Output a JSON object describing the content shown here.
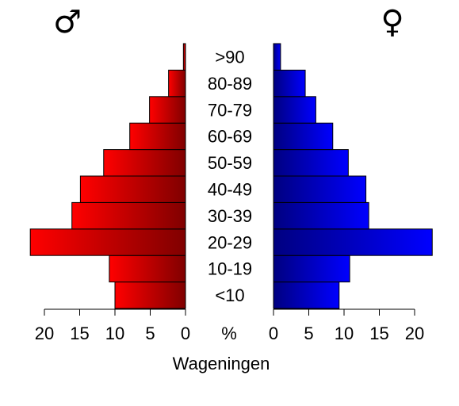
{
  "chart_data": {
    "type": "pyramid",
    "title": "Wageningen",
    "x_label": "%",
    "categories": [
      "<10",
      "10-19",
      "20-29",
      "30-39",
      "40-49",
      "50-59",
      "60-69",
      "70-79",
      "80-89",
      ">90"
    ],
    "series": [
      {
        "name": "♂",
        "color": "#ff0000",
        "values": [
          10.0,
          10.8,
          22.0,
          16.1,
          14.9,
          11.6,
          7.9,
          5.1,
          2.4,
          0.3
        ]
      },
      {
        "name": "♀",
        "color": "#0000ff",
        "values": [
          9.3,
          10.8,
          22.5,
          13.5,
          13.1,
          10.6,
          8.4,
          6.0,
          4.5,
          1.0
        ]
      }
    ],
    "xlim": [
      0,
      20
    ],
    "xticks": [
      0,
      5,
      10,
      15,
      20
    ]
  }
}
